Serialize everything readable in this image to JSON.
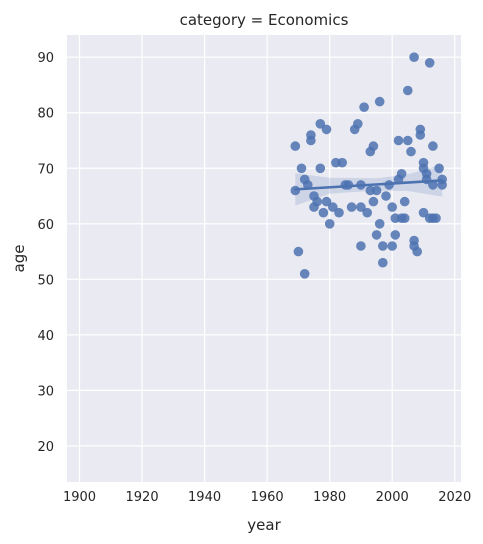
{
  "chart_data": {
    "type": "scatter",
    "title": "category = Economics",
    "xlabel": "year",
    "ylabel": "age",
    "xlim": [
      1896,
      2022
    ],
    "ylim": [
      13.5,
      94
    ],
    "xticks": [
      1900,
      1920,
      1940,
      1960,
      1980,
      2000,
      2020
    ],
    "yticks": [
      20,
      30,
      40,
      50,
      60,
      70,
      80,
      90
    ],
    "grid": true,
    "colors": {
      "background": "#eaeaf2",
      "point": "#4c72b0",
      "band": "#4c72b0"
    },
    "points": [
      [
        1969,
        74
      ],
      [
        1969,
        66
      ],
      [
        1970,
        55
      ],
      [
        1971,
        70
      ],
      [
        1972,
        51
      ],
      [
        1972,
        68
      ],
      [
        1973,
        67
      ],
      [
        1974,
        76
      ],
      [
        1974,
        75
      ],
      [
        1975,
        65
      ],
      [
        1975,
        63
      ],
      [
        1976,
        64
      ],
      [
        1977,
        78
      ],
      [
        1977,
        70
      ],
      [
        1978,
        62
      ],
      [
        1979,
        77
      ],
      [
        1979,
        64
      ],
      [
        1980,
        60
      ],
      [
        1981,
        63
      ],
      [
        1982,
        71
      ],
      [
        1983,
        62
      ],
      [
        1984,
        71
      ],
      [
        1985,
        67
      ],
      [
        1986,
        67
      ],
      [
        1987,
        63
      ],
      [
        1988,
        77
      ],
      [
        1989,
        78
      ],
      [
        1990,
        67
      ],
      [
        1990,
        63
      ],
      [
        1990,
        56
      ],
      [
        1991,
        81
      ],
      [
        1992,
        62
      ],
      [
        1993,
        73
      ],
      [
        1993,
        66
      ],
      [
        1994,
        74
      ],
      [
        1994,
        64
      ],
      [
        1995,
        66
      ],
      [
        1995,
        58
      ],
      [
        1996,
        82
      ],
      [
        1996,
        60
      ],
      [
        1997,
        56
      ],
      [
        1997,
        53
      ],
      [
        1998,
        65
      ],
      [
        1999,
        67
      ],
      [
        2000,
        63
      ],
      [
        2000,
        56
      ],
      [
        2001,
        61
      ],
      [
        2001,
        58
      ],
      [
        2002,
        75
      ],
      [
        2002,
        68
      ],
      [
        2003,
        69
      ],
      [
        2003,
        61
      ],
      [
        2004,
        64
      ],
      [
        2004,
        61
      ],
      [
        2005,
        84
      ],
      [
        2005,
        75
      ],
      [
        2006,
        73
      ],
      [
        2007,
        90
      ],
      [
        2007,
        57
      ],
      [
        2007,
        56
      ],
      [
        2008,
        55
      ],
      [
        2009,
        77
      ],
      [
        2009,
        76
      ],
      [
        2010,
        71
      ],
      [
        2010,
        70
      ],
      [
        2010,
        62
      ],
      [
        2011,
        69
      ],
      [
        2011,
        68
      ],
      [
        2012,
        89
      ],
      [
        2012,
        61
      ],
      [
        2013,
        74
      ],
      [
        2013,
        67
      ],
      [
        2013,
        61
      ],
      [
        2014,
        61
      ],
      [
        2015,
        70
      ],
      [
        2016,
        68
      ],
      [
        2016,
        67
      ]
    ],
    "regression": {
      "x": [
        1969,
        2016
      ],
      "y": [
        66.2,
        67.8
      ]
    },
    "confidence_band": {
      "x": [
        1969,
        1980,
        1995,
        2005,
        2016
      ],
      "lower": [
        63.3,
        65.4,
        66.0,
        65.9,
        64.9
      ],
      "upper": [
        69.1,
        68.3,
        68.2,
        68.9,
        70.7
      ]
    }
  }
}
